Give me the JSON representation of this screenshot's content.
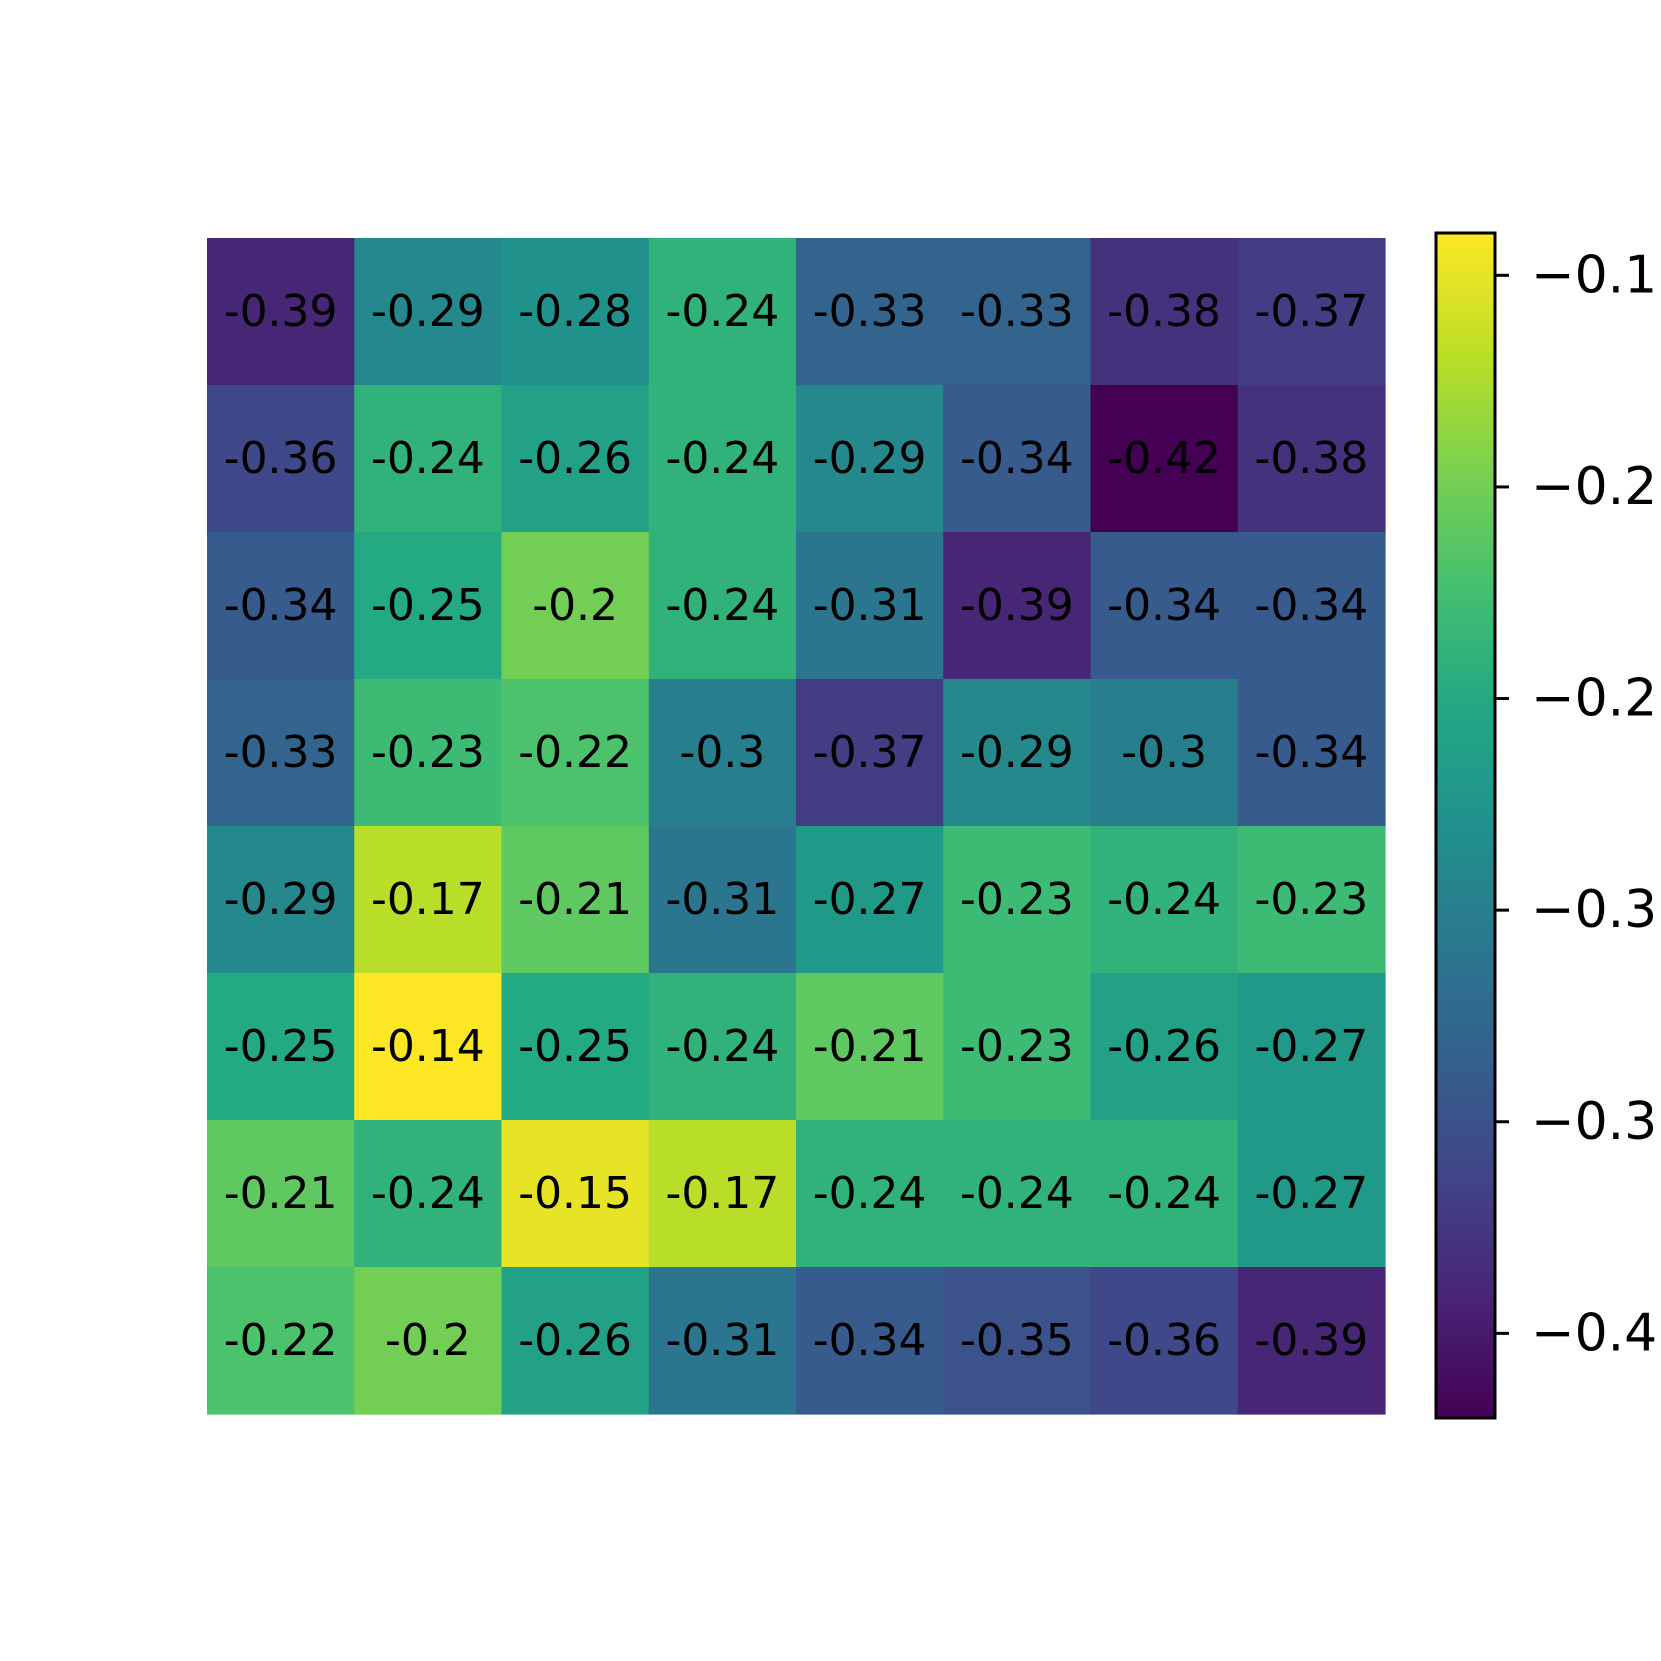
{
  "chart_data": {
    "type": "heatmap",
    "title": "",
    "xlabel": "",
    "ylabel": "",
    "rows": 8,
    "cols": 8,
    "values": [
      [
        -0.39,
        -0.29,
        -0.28,
        -0.24,
        -0.33,
        -0.33,
        -0.38,
        -0.37
      ],
      [
        -0.36,
        -0.24,
        -0.26,
        -0.24,
        -0.29,
        -0.34,
        -0.42,
        -0.38
      ],
      [
        -0.34,
        -0.25,
        -0.2,
        -0.24,
        -0.31,
        -0.39,
        -0.34,
        -0.34
      ],
      [
        -0.33,
        -0.23,
        -0.22,
        -0.3,
        -0.37,
        -0.29,
        -0.3,
        -0.34
      ],
      [
        -0.29,
        -0.17,
        -0.21,
        -0.31,
        -0.27,
        -0.23,
        -0.24,
        -0.23
      ],
      [
        -0.25,
        -0.14,
        -0.25,
        -0.24,
        -0.21,
        -0.23,
        -0.26,
        -0.27
      ],
      [
        -0.21,
        -0.24,
        -0.15,
        -0.17,
        -0.24,
        -0.24,
        -0.24,
        -0.27
      ],
      [
        -0.22,
        -0.2,
        -0.26,
        -0.31,
        -0.34,
        -0.35,
        -0.36,
        -0.39
      ]
    ],
    "colormap": "viridis",
    "vmin": -0.42,
    "vmax": -0.14,
    "colorbar": {
      "range": [
        -0.42,
        -0.14
      ],
      "ticks": [
        -0.15,
        -0.2,
        -0.25,
        -0.3,
        -0.35,
        -0.4
      ],
      "tick_labels": [
        "−0.1",
        "−0.2",
        "−0.2",
        "−0.3",
        "−0.3",
        "−0.4"
      ]
    },
    "grid": false,
    "colors": {
      "text": "#000000",
      "background": "#ffffff",
      "colorbar_border": "#000000"
    }
  }
}
